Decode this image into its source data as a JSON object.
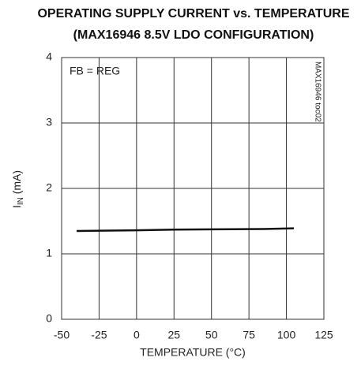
{
  "chart_data": {
    "type": "line",
    "title": [
      "OPERATING SUPPLY CURRENT vs. TEMPERATURE",
      "(MAX16946 8.5V LDO CONFIGURATION)"
    ],
    "xlabel": "TEMPERATURE (°C)",
    "ylabel": [
      "I",
      "IN",
      " (mA)"
    ],
    "annotations": [
      "FB = REG",
      "MAX16946 toc02"
    ],
    "x": [
      -40,
      0,
      25,
      85,
      105
    ],
    "series": [
      {
        "name": "FB = REG",
        "color": "#111111",
        "values": [
          1.35,
          1.36,
          1.37,
          1.38,
          1.39
        ]
      }
    ],
    "xlim": [
      -50,
      125
    ],
    "xticks": [
      -50,
      -25,
      0,
      25,
      50,
      75,
      100,
      125
    ],
    "ylim": [
      0,
      4
    ],
    "yticks": [
      0,
      1,
      2,
      3,
      4
    ],
    "grid": true
  }
}
